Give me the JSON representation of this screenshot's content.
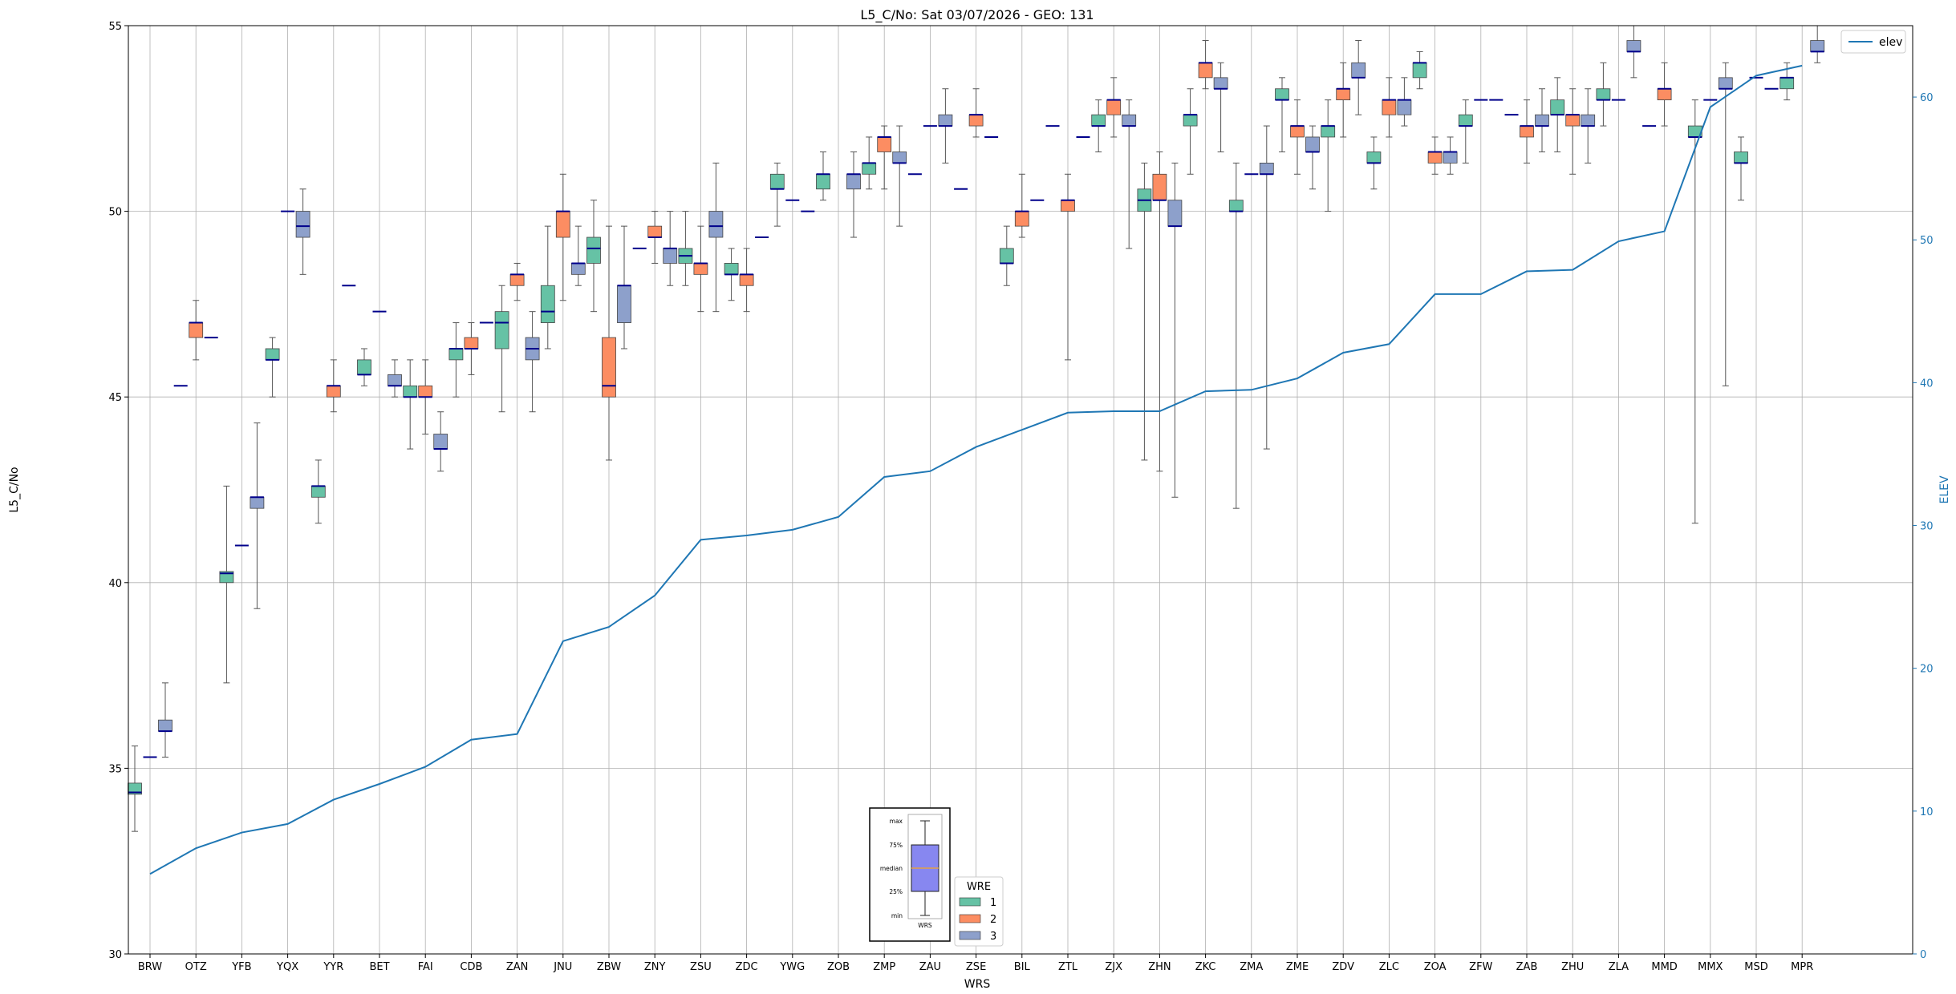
{
  "chart_data": {
    "type": "box",
    "title": "L5_C/No: Sat 03/07/2026 - GEO: 131",
    "xlabel": "WRS",
    "ylabel": "L5_C/No",
    "y2label": "ELEV",
    "ylim": [
      30,
      55
    ],
    "y2lim": [
      0,
      65
    ],
    "yticks": [
      30,
      35,
      40,
      45,
      50,
      55
    ],
    "y2ticks": [
      0,
      10,
      20,
      30,
      40,
      50,
      60
    ],
    "grid": true,
    "categories": [
      "BRW",
      "OTZ",
      "YFB",
      "YQX",
      "YYR",
      "BET",
      "FAI",
      "CDB",
      "ZAN",
      "JNU",
      "ZBW",
      "ZNY",
      "ZSU",
      "ZDC",
      "YWG",
      "ZOB",
      "ZMP",
      "ZAU",
      "ZSE",
      "BIL",
      "ZTL",
      "ZJX",
      "ZHN",
      "ZKC",
      "ZMA",
      "ZME",
      "ZDV",
      "ZLC",
      "ZOA",
      "ZFW",
      "ZAB",
      "ZHU",
      "ZLA",
      "MMD",
      "MMX",
      "MSD",
      "MPR"
    ],
    "colors": {
      "1": "#66c2a5",
      "2": "#fc8d62",
      "3": "#8da0cb",
      "median": "#00008b",
      "whisker": "#555555",
      "elev_line": "#1f77b4",
      "axis2": "#1f77b4"
    },
    "legend_wre": {
      "title": "WRE",
      "entries": [
        "1",
        "2",
        "3"
      ],
      "placement": "bottom-center"
    },
    "legend_elev": {
      "label": "elev",
      "placement": "top-right"
    },
    "key_inset": {
      "labels": [
        "max",
        "75%",
        "median",
        "25%",
        "min"
      ],
      "xlabel": "WRS"
    },
    "elev": [
      5.6,
      7.4,
      8.5,
      9.1,
      10.8,
      11.9,
      13.1,
      15.0,
      15.4,
      21.9,
      22.9,
      25.1,
      29.0,
      29.3,
      29.7,
      30.6,
      33.4,
      33.8,
      35.5,
      36.7,
      37.9,
      38.0,
      38.0,
      39.4,
      39.5,
      40.3,
      42.1,
      42.7,
      46.2,
      46.2,
      47.8,
      47.9,
      49.9,
      50.6,
      59.3,
      61.5,
      62.2
    ],
    "series": [
      {
        "name": "1",
        "boxes": [
          {
            "cat": 0,
            "min": 33.3,
            "q1": 34.3,
            "med": 34.35,
            "q3": 34.6,
            "max": 35.6
          },
          {
            "cat": 2,
            "min": 37.3,
            "q1": 40.0,
            "med": 40.25,
            "q3": 40.3,
            "max": 42.6
          },
          {
            "cat": 3,
            "min": 45.0,
            "q1": 46.0,
            "med": 46.0,
            "q3": 46.3,
            "max": 46.6
          },
          {
            "cat": 4,
            "min": 41.6,
            "q1": 42.3,
            "med": 42.6,
            "q3": 42.6,
            "max": 43.3
          },
          {
            "cat": 5,
            "min": 45.3,
            "q1": 45.6,
            "med": 45.6,
            "q3": 46.0,
            "max": 46.3
          },
          {
            "cat": 6,
            "min": 43.6,
            "q1": 45.0,
            "med": 45.0,
            "q3": 45.3,
            "max": 46.0
          },
          {
            "cat": 7,
            "min": 45.0,
            "q1": 46.0,
            "med": 46.3,
            "q3": 46.3,
            "max": 47.0
          },
          {
            "cat": 8,
            "min": 44.6,
            "q1": 46.3,
            "med": 47.0,
            "q3": 47.3,
            "max": 48.0
          },
          {
            "cat": 9,
            "min": 46.3,
            "q1": 47.0,
            "med": 47.3,
            "q3": 48.0,
            "max": 49.6
          },
          {
            "cat": 10,
            "min": 47.3,
            "q1": 48.6,
            "med": 49.0,
            "q3": 49.3,
            "max": 50.3
          },
          {
            "cat": 12,
            "min": 48.0,
            "q1": 48.6,
            "med": 48.8,
            "q3": 49.0,
            "max": 50.0
          },
          {
            "cat": 13,
            "min": 47.6,
            "q1": 48.3,
            "med": 48.3,
            "q3": 48.6,
            "max": 49.0
          },
          {
            "cat": 14,
            "min": 49.6,
            "q1": 50.6,
            "med": 50.6,
            "q3": 51.0,
            "max": 51.3
          },
          {
            "cat": 15,
            "min": 50.3,
            "q1": 50.6,
            "med": 51.0,
            "q3": 51.0,
            "max": 51.6
          },
          {
            "cat": 16,
            "min": 50.6,
            "q1": 51.0,
            "med": 51.3,
            "q3": 51.3,
            "max": 52.0
          },
          {
            "cat": 19,
            "min": 48.0,
            "q1": 48.6,
            "med": 48.6,
            "q3": 49.0,
            "max": 49.6
          },
          {
            "cat": 21,
            "min": 51.6,
            "q1": 52.3,
            "med": 52.3,
            "q3": 52.6,
            "max": 53.0
          },
          {
            "cat": 22,
            "min": 43.3,
            "q1": 50.0,
            "med": 50.3,
            "q3": 50.6,
            "max": 51.3
          },
          {
            "cat": 23,
            "min": 51.0,
            "q1": 52.3,
            "med": 52.6,
            "q3": 52.6,
            "max": 53.3
          },
          {
            "cat": 24,
            "min": 42.0,
            "q1": 50.0,
            "med": 50.0,
            "q3": 50.3,
            "max": 51.3
          },
          {
            "cat": 25,
            "min": 51.6,
            "q1": 53.0,
            "med": 53.0,
            "q3": 53.3,
            "max": 53.6
          },
          {
            "cat": 26,
            "min": 50.0,
            "q1": 52.0,
            "med": 52.3,
            "q3": 52.3,
            "max": 53.0
          },
          {
            "cat": 27,
            "min": 50.6,
            "q1": 51.3,
            "med": 51.3,
            "q3": 51.6,
            "max": 52.0
          },
          {
            "cat": 28,
            "min": 53.3,
            "q1": 53.6,
            "med": 54.0,
            "q3": 54.0,
            "max": 54.3
          },
          {
            "cat": 29,
            "min": 51.3,
            "q1": 52.3,
            "med": 52.3,
            "q3": 52.6,
            "max": 53.0
          },
          {
            "cat": 31,
            "min": 51.6,
            "q1": 52.6,
            "med": 52.6,
            "q3": 53.0,
            "max": 53.6
          },
          {
            "cat": 32,
            "min": 52.3,
            "q1": 53.0,
            "med": 53.0,
            "q3": 53.3,
            "max": 54.0
          },
          {
            "cat": 34,
            "min": 41.6,
            "q1": 52.0,
            "med": 52.0,
            "q3": 52.3,
            "max": 53.0
          },
          {
            "cat": 35,
            "min": 50.3,
            "q1": 51.3,
            "med": 51.3,
            "q3": 51.6,
            "max": 52.0
          },
          {
            "cat": 36,
            "min": 53.0,
            "q1": 53.3,
            "med": 53.6,
            "q3": 53.6,
            "max": 54.0
          }
        ]
      },
      {
        "name": "2",
        "boxes": [
          {
            "cat": 1,
            "min": 46.0,
            "q1": 46.6,
            "med": 47.0,
            "q3": 47.0,
            "max": 47.6
          },
          {
            "cat": 4,
            "min": 44.6,
            "q1": 45.0,
            "med": 45.3,
            "q3": 45.3,
            "max": 46.0
          },
          {
            "cat": 6,
            "min": 44.0,
            "q1": 45.0,
            "med": 45.0,
            "q3": 45.3,
            "max": 46.0
          },
          {
            "cat": 7,
            "min": 45.6,
            "q1": 46.3,
            "med": 46.3,
            "q3": 46.6,
            "max": 47.0
          },
          {
            "cat": 8,
            "min": 47.6,
            "q1": 48.0,
            "med": 48.3,
            "q3": 48.3,
            "max": 48.6
          },
          {
            "cat": 9,
            "min": 47.6,
            "q1": 49.3,
            "med": 50.0,
            "q3": 50.0,
            "max": 51.0
          },
          {
            "cat": 10,
            "min": 43.3,
            "q1": 45.0,
            "med": 45.3,
            "q3": 46.6,
            "max": 49.6
          },
          {
            "cat": 11,
            "min": 48.6,
            "q1": 49.3,
            "med": 49.3,
            "q3": 49.6,
            "max": 50.0
          },
          {
            "cat": 12,
            "min": 47.3,
            "q1": 48.3,
            "med": 48.6,
            "q3": 48.6,
            "max": 49.6
          },
          {
            "cat": 13,
            "min": 47.3,
            "q1": 48.0,
            "med": 48.3,
            "q3": 48.3,
            "max": 49.0
          },
          {
            "cat": 16,
            "min": 50.6,
            "q1": 51.6,
            "med": 52.0,
            "q3": 52.0,
            "max": 52.3
          },
          {
            "cat": 18,
            "min": 52.0,
            "q1": 52.3,
            "med": 52.6,
            "q3": 52.6,
            "max": 53.3
          },
          {
            "cat": 19,
            "min": 49.3,
            "q1": 49.6,
            "med": 50.0,
            "q3": 50.0,
            "max": 51.0
          },
          {
            "cat": 20,
            "min": 46.0,
            "q1": 50.0,
            "med": 50.3,
            "q3": 50.3,
            "max": 51.0
          },
          {
            "cat": 21,
            "min": 52.0,
            "q1": 52.6,
            "med": 53.0,
            "q3": 53.0,
            "max": 53.6
          },
          {
            "cat": 22,
            "min": 43.0,
            "q1": 50.3,
            "med": 50.3,
            "q3": 51.0,
            "max": 51.6
          },
          {
            "cat": 23,
            "min": 53.3,
            "q1": 53.6,
            "med": 54.0,
            "q3": 54.0,
            "max": 54.6
          },
          {
            "cat": 25,
            "min": 51.0,
            "q1": 52.0,
            "med": 52.3,
            "q3": 52.3,
            "max": 53.0
          },
          {
            "cat": 26,
            "min": 52.0,
            "q1": 53.0,
            "med": 53.3,
            "q3": 53.3,
            "max": 54.0
          },
          {
            "cat": 27,
            "min": 52.0,
            "q1": 52.6,
            "med": 53.0,
            "q3": 53.0,
            "max": 53.6
          },
          {
            "cat": 28,
            "min": 51.0,
            "q1": 51.3,
            "med": 51.6,
            "q3": 51.6,
            "max": 52.0
          },
          {
            "cat": 30,
            "min": 51.3,
            "q1": 52.0,
            "med": 52.3,
            "q3": 52.3,
            "max": 53.0
          },
          {
            "cat": 31,
            "min": 51.0,
            "q1": 52.3,
            "med": 52.6,
            "q3": 52.6,
            "max": 53.3
          },
          {
            "cat": 33,
            "min": 52.3,
            "q1": 53.0,
            "med": 53.3,
            "q3": 53.3,
            "max": 54.0
          }
        ]
      },
      {
        "name": "3",
        "boxes": [
          {
            "cat": 0,
            "min": 35.3,
            "q1": 36.0,
            "med": 36.0,
            "q3": 36.3,
            "max": 37.3
          },
          {
            "cat": 2,
            "min": 39.3,
            "q1": 42.0,
            "med": 42.3,
            "q3": 42.3,
            "max": 44.3
          },
          {
            "cat": 3,
            "min": 48.3,
            "q1": 49.3,
            "med": 49.6,
            "q3": 50.0,
            "max": 50.6
          },
          {
            "cat": 5,
            "min": 45.0,
            "q1": 45.3,
            "med": 45.3,
            "q3": 45.6,
            "max": 46.0
          },
          {
            "cat": 6,
            "min": 43.0,
            "q1": 43.6,
            "med": 43.6,
            "q3": 44.0,
            "max": 44.6
          },
          {
            "cat": 8,
            "min": 44.6,
            "q1": 46.0,
            "med": 46.3,
            "q3": 46.6,
            "max": 47.3
          },
          {
            "cat": 9,
            "min": 48.0,
            "q1": 48.3,
            "med": 48.6,
            "q3": 48.6,
            "max": 49.6
          },
          {
            "cat": 10,
            "min": 46.3,
            "q1": 47.0,
            "med": 48.0,
            "q3": 48.0,
            "max": 49.6
          },
          {
            "cat": 11,
            "min": 48.0,
            "q1": 48.6,
            "med": 49.0,
            "q3": 49.0,
            "max": 50.0
          },
          {
            "cat": 12,
            "min": 47.3,
            "q1": 49.3,
            "med": 49.6,
            "q3": 50.0,
            "max": 51.3
          },
          {
            "cat": 15,
            "min": 49.3,
            "q1": 50.6,
            "med": 51.0,
            "q3": 51.0,
            "max": 51.6
          },
          {
            "cat": 16,
            "min": 49.6,
            "q1": 51.3,
            "med": 51.3,
            "q3": 51.6,
            "max": 52.3
          },
          {
            "cat": 17,
            "min": 51.3,
            "q1": 52.3,
            "med": 52.3,
            "q3": 52.6,
            "max": 53.3
          },
          {
            "cat": 21,
            "min": 49.0,
            "q1": 52.3,
            "med": 52.3,
            "q3": 52.6,
            "max": 53.0
          },
          {
            "cat": 22,
            "min": 42.3,
            "q1": 49.6,
            "med": 49.6,
            "q3": 50.3,
            "max": 51.3
          },
          {
            "cat": 23,
            "min": 51.6,
            "q1": 53.3,
            "med": 53.3,
            "q3": 53.6,
            "max": 54.0
          },
          {
            "cat": 24,
            "min": 43.6,
            "q1": 51.0,
            "med": 51.0,
            "q3": 51.3,
            "max": 52.3
          },
          {
            "cat": 25,
            "min": 50.6,
            "q1": 51.6,
            "med": 51.6,
            "q3": 52.0,
            "max": 52.3
          },
          {
            "cat": 26,
            "min": 52.6,
            "q1": 53.6,
            "med": 53.6,
            "q3": 54.0,
            "max": 54.6
          },
          {
            "cat": 27,
            "min": 52.3,
            "q1": 52.6,
            "med": 53.0,
            "q3": 53.0,
            "max": 53.6
          },
          {
            "cat": 28,
            "min": 51.0,
            "q1": 51.3,
            "med": 51.6,
            "q3": 51.6,
            "max": 52.0
          },
          {
            "cat": 30,
            "min": 51.6,
            "q1": 52.3,
            "med": 52.3,
            "q3": 52.6,
            "max": 53.3
          },
          {
            "cat": 31,
            "min": 51.3,
            "q1": 52.3,
            "med": 52.3,
            "q3": 52.6,
            "max": 53.3
          },
          {
            "cat": 32,
            "min": 53.6,
            "q1": 54.3,
            "med": 54.3,
            "q3": 54.6,
            "max": 55.0
          },
          {
            "cat": 34,
            "min": 45.3,
            "q1": 53.3,
            "med": 53.3,
            "q3": 53.6,
            "max": 54.0
          },
          {
            "cat": 36,
            "min": 54.0,
            "q1": 54.3,
            "med": 54.3,
            "q3": 54.6,
            "max": 55.0
          }
        ]
      }
    ],
    "single_medians": [
      {
        "cat": 0,
        "value": 35.3,
        "offset": 0.0
      },
      {
        "cat": 1,
        "value": 45.3,
        "offset": -1
      },
      {
        "cat": 1,
        "value": 46.6,
        "offset": 1
      },
      {
        "cat": 2,
        "value": 41.0,
        "offset": 0
      },
      {
        "cat": 3,
        "value": 50.0,
        "offset": 0
      },
      {
        "cat": 4,
        "value": 48.0,
        "offset": 1
      },
      {
        "cat": 5,
        "value": 47.3,
        "offset": 0
      },
      {
        "cat": 7,
        "value": 47.0,
        "offset": 1
      },
      {
        "cat": 11,
        "value": 49.0,
        "offset": -1
      },
      {
        "cat": 13,
        "value": 49.3,
        "offset": 1
      },
      {
        "cat": 14,
        "value": 50.3,
        "offset": 0
      },
      {
        "cat": 14,
        "value": 50.0,
        "offset": 1
      },
      {
        "cat": 17,
        "value": 51.0,
        "offset": -1
      },
      {
        "cat": 17,
        "value": 52.3,
        "offset": 0
      },
      {
        "cat": 18,
        "value": 50.6,
        "offset": -1
      },
      {
        "cat": 18,
        "value": 52.0,
        "offset": 1
      },
      {
        "cat": 19,
        "value": 50.3,
        "offset": 1
      },
      {
        "cat": 20,
        "value": 52.3,
        "offset": -1
      },
      {
        "cat": 20,
        "value": 52.0,
        "offset": 1
      },
      {
        "cat": 24,
        "value": 51.0,
        "offset": 0
      },
      {
        "cat": 29,
        "value": 53.0,
        "offset": 0
      },
      {
        "cat": 29,
        "value": 53.0,
        "offset": 1
      },
      {
        "cat": 30,
        "value": 52.6,
        "offset": -1
      },
      {
        "cat": 32,
        "value": 53.0,
        "offset": 0
      },
      {
        "cat": 33,
        "value": 52.3,
        "offset": -1
      },
      {
        "cat": 34,
        "value": 53.0,
        "offset": 0
      },
      {
        "cat": 35,
        "value": 53.6,
        "offset": 0
      },
      {
        "cat": 35,
        "value": 53.3,
        "offset": 1
      }
    ]
  }
}
